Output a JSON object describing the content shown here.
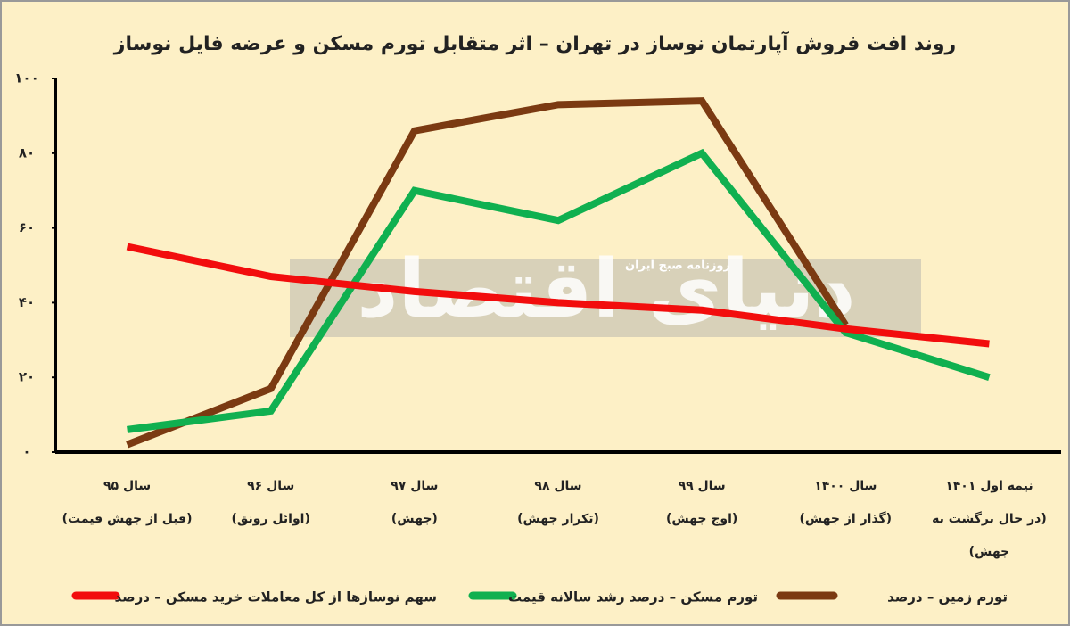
{
  "chart_data": {
    "type": "line",
    "title": "روند افت فروش آپارتمان نوساز در تهران – اثر متقابل تورم مسکن و عرضه فایل نوساز",
    "watermark": [
      "دنیای اقتصاد",
      "روزنامه صبح ایران"
    ],
    "categories": [
      [
        "سال ۹۵",
        "(قبل از جهش قیمت)"
      ],
      [
        "سال ۹۶",
        "(اوائل رونق)"
      ],
      [
        "سال ۹۷",
        "(جهش)"
      ],
      [
        "سال ۹۸",
        "(تکرار جهش)"
      ],
      [
        "سال ۹۹",
        "(اوج جهش)"
      ],
      [
        "سال ۱۴۰۰",
        "(گذار از جهش)"
      ],
      [
        "نیمه اول ۱۴۰۱",
        "(در حال برگشت به",
        "جهش)"
      ]
    ],
    "series": [
      {
        "name": "سهم نوسازها از کل معاملات خرید مسکن – درصد",
        "color": "#f20d0d",
        "values": [
          55,
          47,
          43,
          40,
          38,
          33,
          29
        ]
      },
      {
        "name": "تورم مسکن – درصد رشد سالانه قیمت",
        "color": "#10b050",
        "values": [
          6,
          11,
          70,
          62,
          80,
          32,
          20
        ]
      },
      {
        "name": "تورم زمین – درصد",
        "color": "#7b3a12",
        "values": [
          2,
          17,
          86,
          93,
          94,
          34,
          null
        ]
      }
    ],
    "ylim": [
      0,
      100
    ],
    "yticks": [
      {
        "value": 0,
        "label": "۰"
      },
      {
        "value": 20,
        "label": "۲۰"
      },
      {
        "value": 40,
        "label": "۴۰"
      },
      {
        "value": 60,
        "label": "۶۰"
      },
      {
        "value": 80,
        "label": "۸۰"
      },
      {
        "value": 100,
        "label": "۱۰۰"
      }
    ],
    "grid": false
  }
}
